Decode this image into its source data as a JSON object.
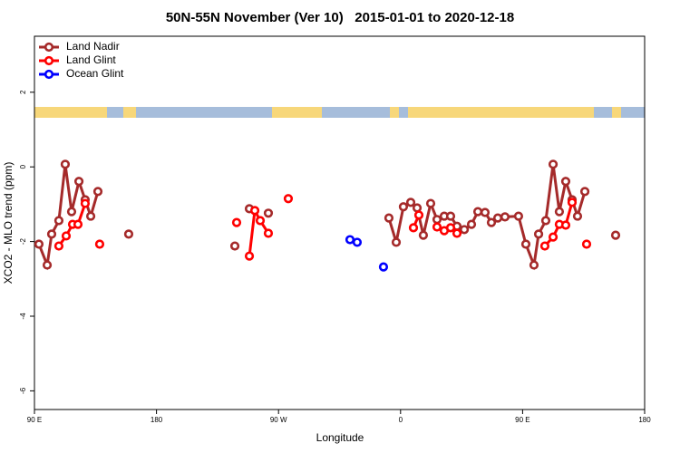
{
  "chart_data": {
    "type": "line",
    "title": "50N-55N November (Ver 10)   2015-01-01 to 2020-12-18",
    "xlabel": "Longitude",
    "ylabel": "XCO2 - MLO trend (ppm)",
    "xlim": [
      90,
      540
    ],
    "ylim": [
      -6.5,
      3.5
    ],
    "xticks": [
      {
        "value": 90,
        "label": "90 E"
      },
      180,
      {
        "value": 270,
        "label": "90 W"
      },
      {
        "value": 360,
        "label": "0"
      },
      {
        "value": 450,
        "label": "90 E"
      },
      {
        "value": 540,
        "label": "180"
      }
    ],
    "yticks": [
      2,
      0,
      -2,
      -4,
      -6
    ],
    "legend": "top-left",
    "series": [
      {
        "name": "Land Nadir",
        "color": "#a52a2a",
        "x": [
          93.3,
          99.4,
          102.7,
          108,
          112.7,
          117.4,
          122.8,
          127.4,
          131.5,
          136.8,
          null,
          159.5,
          null,
          237.8,
          null,
          248.5,
          null,
          262.5,
          null,
          351.4,
          356.8,
          362.1,
          367.5,
          372.2,
          376.8,
          382.2,
          386.9,
          392.2,
          396.9,
          401.6,
          407,
          412.3,
          417,
          422.3,
          427,
          431.7,
          437,
          447,
          452.4,
          458.4,
          461.8,
          467.1,
          472.5,
          477.1,
          481.8,
          486.5,
          490.5,
          495.9,
          null,
          518.6
        ],
        "values": [
          -2.07,
          -2.63,
          -1.8,
          -1.44,
          0.07,
          -1.2,
          -0.39,
          -0.88,
          -1.32,
          -0.66,
          null,
          -1.8,
          null,
          -2.12,
          null,
          -1.12,
          null,
          -1.24,
          null,
          -1.37,
          -2.02,
          -1.07,
          -0.95,
          -1.1,
          -1.83,
          -0.98,
          -1.41,
          -1.32,
          -1.32,
          -1.59,
          -1.68,
          -1.54,
          -1.2,
          -1.22,
          -1.49,
          -1.37,
          -1.34,
          -1.32,
          -2.07,
          -2.63,
          -1.8,
          -1.44,
          0.07,
          -1.2,
          -0.39,
          -0.88,
          -1.32,
          -0.66,
          null,
          -1.83
        ]
      },
      {
        "name": "Land Glint",
        "color": "#ff0000",
        "x": [
          108,
          113.4,
          118.1,
          122.1,
          127.4,
          null,
          138.1,
          null,
          239.1,
          null,
          248.5,
          252.5,
          256.5,
          262.5,
          null,
          277.2,
          null,
          369.5,
          373.5,
          null,
          386.9,
          392.2,
          396.9,
          401.6,
          null,
          466.4,
          472.5,
          477.1,
          481.8,
          486.5,
          null,
          497.2
        ],
        "values": [
          -2.12,
          -1.85,
          -1.54,
          -1.54,
          -0.98,
          null,
          -2.07,
          null,
          -1.49,
          null,
          -2.39,
          -1.17,
          -1.44,
          -1.78,
          null,
          -0.85,
          null,
          -1.63,
          -1.29,
          null,
          -1.61,
          -1.71,
          -1.63,
          -1.78,
          null,
          -2.12,
          -1.88,
          -1.54,
          -1.56,
          -0.95,
          null,
          -2.07
        ]
      },
      {
        "name": "Ocean Glint",
        "color": "#0000ff",
        "x": [
          322.7,
          328,
          null,
          347.4
        ],
        "values": [
          -1.95,
          -2.02,
          null,
          -2.68
        ]
      }
    ]
  }
}
